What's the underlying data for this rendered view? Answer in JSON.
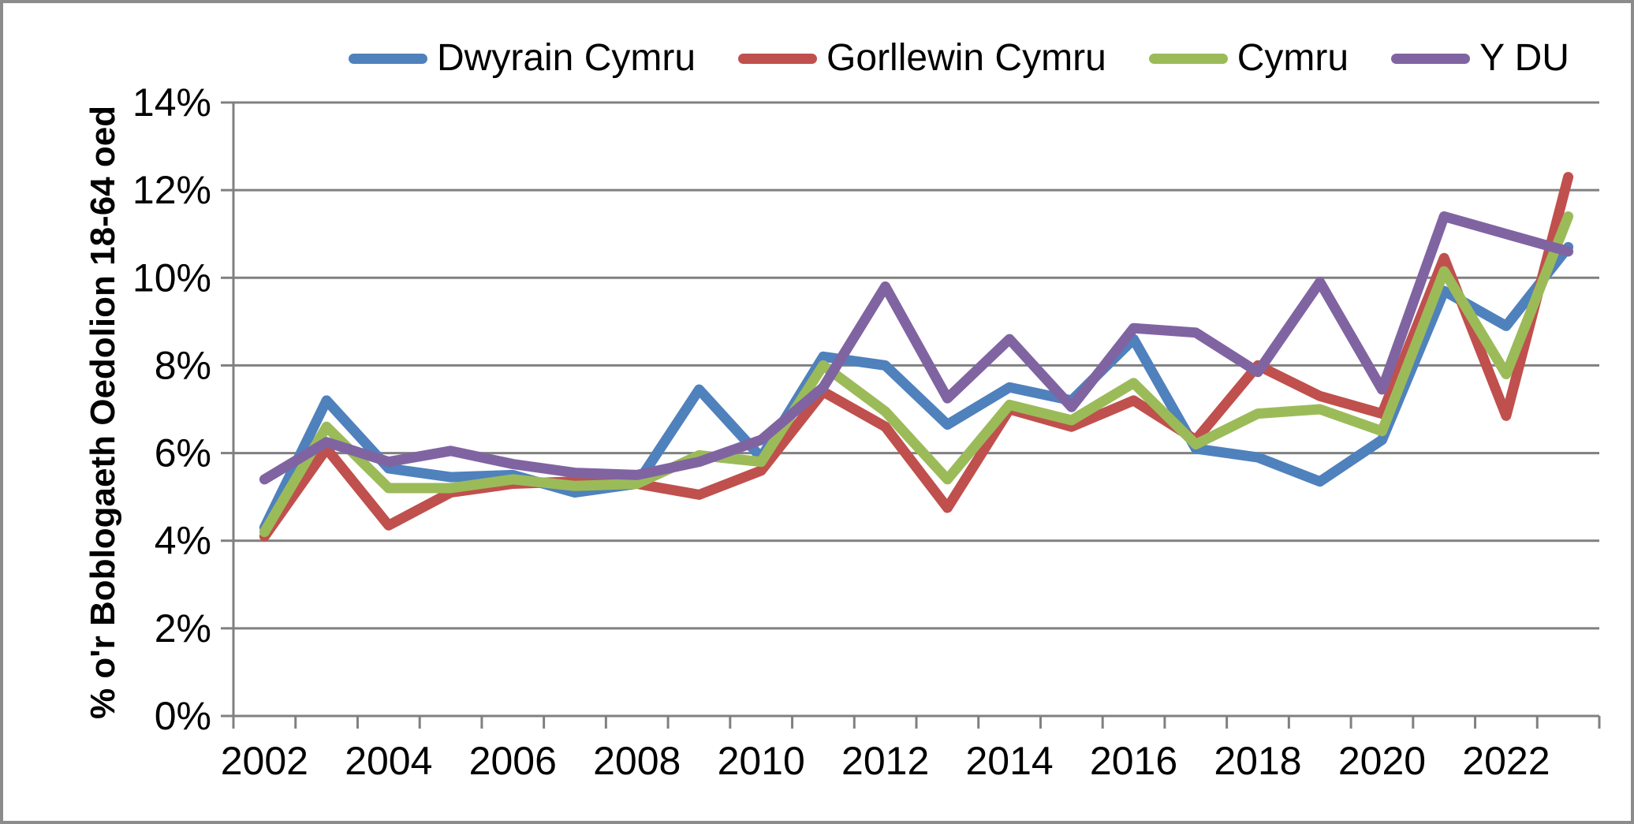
{
  "chart_data": {
    "type": "line",
    "title": "",
    "xlabel": "",
    "ylabel": "% o'r Boblogaeth Oedolion 18-64 oed",
    "x": [
      2002,
      2003,
      2004,
      2005,
      2006,
      2007,
      2008,
      2009,
      2010,
      2011,
      2012,
      2013,
      2014,
      2015,
      2016,
      2017,
      2018,
      2019,
      2020,
      2021,
      2022,
      2023
    ],
    "x_tick_labels": [
      "2002",
      "2004",
      "2006",
      "2008",
      "2010",
      "2012",
      "2014",
      "2016",
      "2018",
      "2020",
      "2022"
    ],
    "ylim": [
      0,
      14
    ],
    "y_tick_step": 2,
    "y_tick_labels": [
      "0%",
      "2%",
      "4%",
      "6%",
      "8%",
      "10%",
      "12%",
      "14%"
    ],
    "grid": "horizontal",
    "legend_position": "top",
    "series": [
      {
        "name": "Dwyrain Cymru",
        "color": "#4F81BD",
        "values": [
          4.3,
          7.2,
          5.65,
          5.45,
          5.5,
          5.1,
          5.3,
          7.45,
          5.9,
          8.2,
          8.0,
          6.65,
          7.5,
          7.2,
          8.6,
          6.1,
          5.9,
          5.35,
          6.3,
          9.7,
          8.9,
          10.7
        ]
      },
      {
        "name": "Gorllewin Cymru",
        "color": "#C0504D",
        "values": [
          4.1,
          6.1,
          4.35,
          5.1,
          5.3,
          5.35,
          5.3,
          5.05,
          5.6,
          7.4,
          6.6,
          4.75,
          7.0,
          6.6,
          7.2,
          6.3,
          8.0,
          7.3,
          6.9,
          10.45,
          6.85,
          12.3
        ]
      },
      {
        "name": "Cymru",
        "color": "#9BBB59",
        "values": [
          4.2,
          6.6,
          5.2,
          5.2,
          5.4,
          5.25,
          5.3,
          5.95,
          5.8,
          8.0,
          6.95,
          5.4,
          7.1,
          6.75,
          7.6,
          6.2,
          6.9,
          7.0,
          6.5,
          10.15,
          7.8,
          11.4
        ]
      },
      {
        "name": "Y DU",
        "color": "#8064A2",
        "values": [
          5.4,
          6.25,
          5.8,
          6.05,
          5.75,
          5.55,
          5.5,
          5.8,
          6.3,
          7.5,
          9.8,
          7.25,
          8.6,
          7.05,
          8.85,
          8.75,
          7.85,
          9.9,
          7.45,
          11.4,
          11.0,
          10.6
        ]
      }
    ]
  },
  "colors": {
    "grid": "#808080",
    "axis": "#808080",
    "border": "#8C8C8C",
    "text": "#000000",
    "background": "#FFFFFF"
  }
}
